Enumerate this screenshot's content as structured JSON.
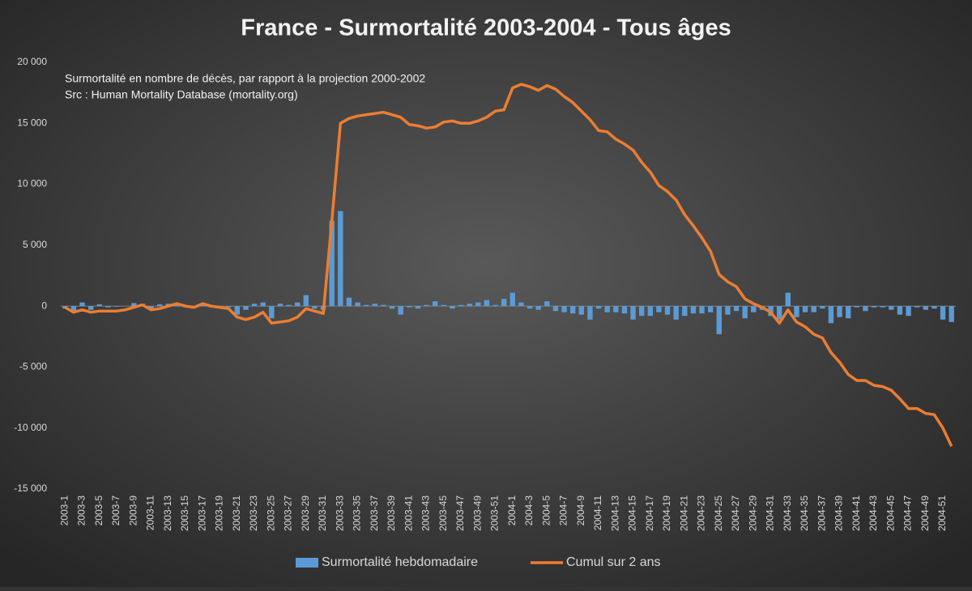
{
  "chart_data": {
    "type": "bar_line",
    "title": "France - Surmortalité 2003-2004 - Tous âges",
    "annotations": [
      "Surmortalité en nombre de décès, par rapport à la projection 2000-2002",
      "Src : Human Mortality Database (mortality.org)"
    ],
    "categories": [
      "2003-1",
      null,
      "2003-3",
      null,
      "2003-5",
      null,
      "2003-7",
      null,
      "2003-9",
      null,
      "2003-11",
      null,
      "2003-13",
      null,
      "2003-15",
      null,
      "2003-17",
      null,
      "2003-19",
      null,
      "2003-21",
      null,
      "2003-23",
      null,
      "2003-25",
      null,
      "2003-27",
      null,
      "2003-29",
      null,
      "2003-31",
      null,
      "2003-33",
      null,
      "2003-35",
      null,
      "2003-37",
      null,
      "2003-39",
      null,
      "2003-41",
      null,
      "2003-43",
      null,
      "2003-45",
      null,
      "2003-47",
      null,
      "2003-49",
      null,
      "2003-51",
      null,
      "2004-1",
      null,
      "2004-3",
      null,
      "2004-5",
      null,
      "2004-7",
      null,
      "2004-9",
      null,
      "2004-11",
      null,
      "2004-13",
      null,
      "2004-15",
      null,
      "2004-17",
      null,
      "2004-19",
      null,
      "2004-21",
      null,
      "2004-23",
      null,
      "2004-25",
      null,
      "2004-27",
      null,
      "2004-29",
      null,
      "2004-31",
      null,
      "2004-33",
      null,
      "2004-35",
      null,
      "2004-37",
      null,
      "2004-39",
      null,
      "2004-41",
      null,
      "2004-43",
      null,
      "2004-45",
      null,
      "2004-47",
      null,
      "2004-49",
      null,
      "2004-51",
      null
    ],
    "series": [
      {
        "name": "Surmortalité hebdomadaire",
        "type": "bar",
        "color": "#5b9bd5",
        "values": [
          -200,
          -400,
          300,
          -300,
          150,
          -100,
          -50,
          0,
          250,
          200,
          -300,
          150,
          200,
          200,
          -100,
          -150,
          250,
          -100,
          -50,
          -100,
          -700,
          -300,
          200,
          300,
          -1000,
          200,
          100,
          300,
          900,
          -200,
          -300,
          7000,
          7800,
          700,
          300,
          100,
          200,
          100,
          -200,
          -700,
          -100,
          -200,
          100,
          400,
          100,
          -200,
          100,
          200,
          300,
          500,
          100,
          600,
          1100,
          300,
          -200,
          -300,
          400,
          -400,
          -500,
          -600,
          -700,
          -1100,
          -200,
          -500,
          -500,
          -600,
          -1100,
          -800,
          -800,
          -500,
          -700,
          -1100,
          -800,
          -600,
          -600,
          -500,
          -2300,
          -700,
          -400,
          -1000,
          -500,
          -300,
          -800,
          -1100,
          1100,
          -900,
          -500,
          -500,
          -200,
          -1400,
          -900,
          -1000,
          -100,
          -400,
          -100,
          -100,
          -300,
          -700,
          -800,
          -100,
          -300,
          -200,
          -1100,
          -1300
        ]
      },
      {
        "name": "Cumul sur 2 ans",
        "type": "line",
        "color": "#ed7d31",
        "values": [
          -100,
          -500,
          -300,
          -500,
          -400,
          -400,
          -400,
          -300,
          -100,
          100,
          -300,
          -200,
          0,
          200,
          0,
          -100,
          200,
          0,
          -100,
          -200,
          -900,
          -1100,
          -900,
          -500,
          -1400,
          -1300,
          -1200,
          -900,
          -200,
          -400,
          -600,
          7000,
          15000,
          15400,
          15600,
          15700,
          15800,
          15900,
          15700,
          15500,
          14900,
          14800,
          14600,
          14700,
          15100,
          15200,
          15000,
          15000,
          15200,
          15500,
          16000,
          16100,
          17900,
          18200,
          18000,
          17700,
          18100,
          17800,
          17200,
          16700,
          16000,
          15300,
          14400,
          14300,
          13700,
          13300,
          12800,
          11800,
          11000,
          9900,
          9400,
          8700,
          7500,
          6600,
          5600,
          4500,
          2600,
          2000,
          1600,
          600,
          200,
          -100,
          -500,
          -1400,
          -300,
          -1300,
          -1700,
          -2300,
          -2600,
          -3800,
          -4600,
          -5600,
          -6100,
          -6100,
          -6500,
          -6600,
          -6900,
          -7600,
          -8400,
          -8400,
          -8800,
          -8900,
          -10000,
          -11500
        ]
      }
    ],
    "ylim": [
      -15000,
      20000
    ],
    "yticks": [
      {
        "value": -15000,
        "label": "-15 000"
      },
      {
        "value": -10000,
        "label": "-10 000"
      },
      {
        "value": -5000,
        "label": "-5 000"
      },
      0,
      {
        "value": 5000,
        "label": "5 000"
      },
      {
        "value": 10000,
        "label": "10 000"
      },
      {
        "value": 15000,
        "label": "15 000"
      },
      {
        "value": 20000,
        "label": "20 000"
      }
    ],
    "legend": "bottom"
  }
}
